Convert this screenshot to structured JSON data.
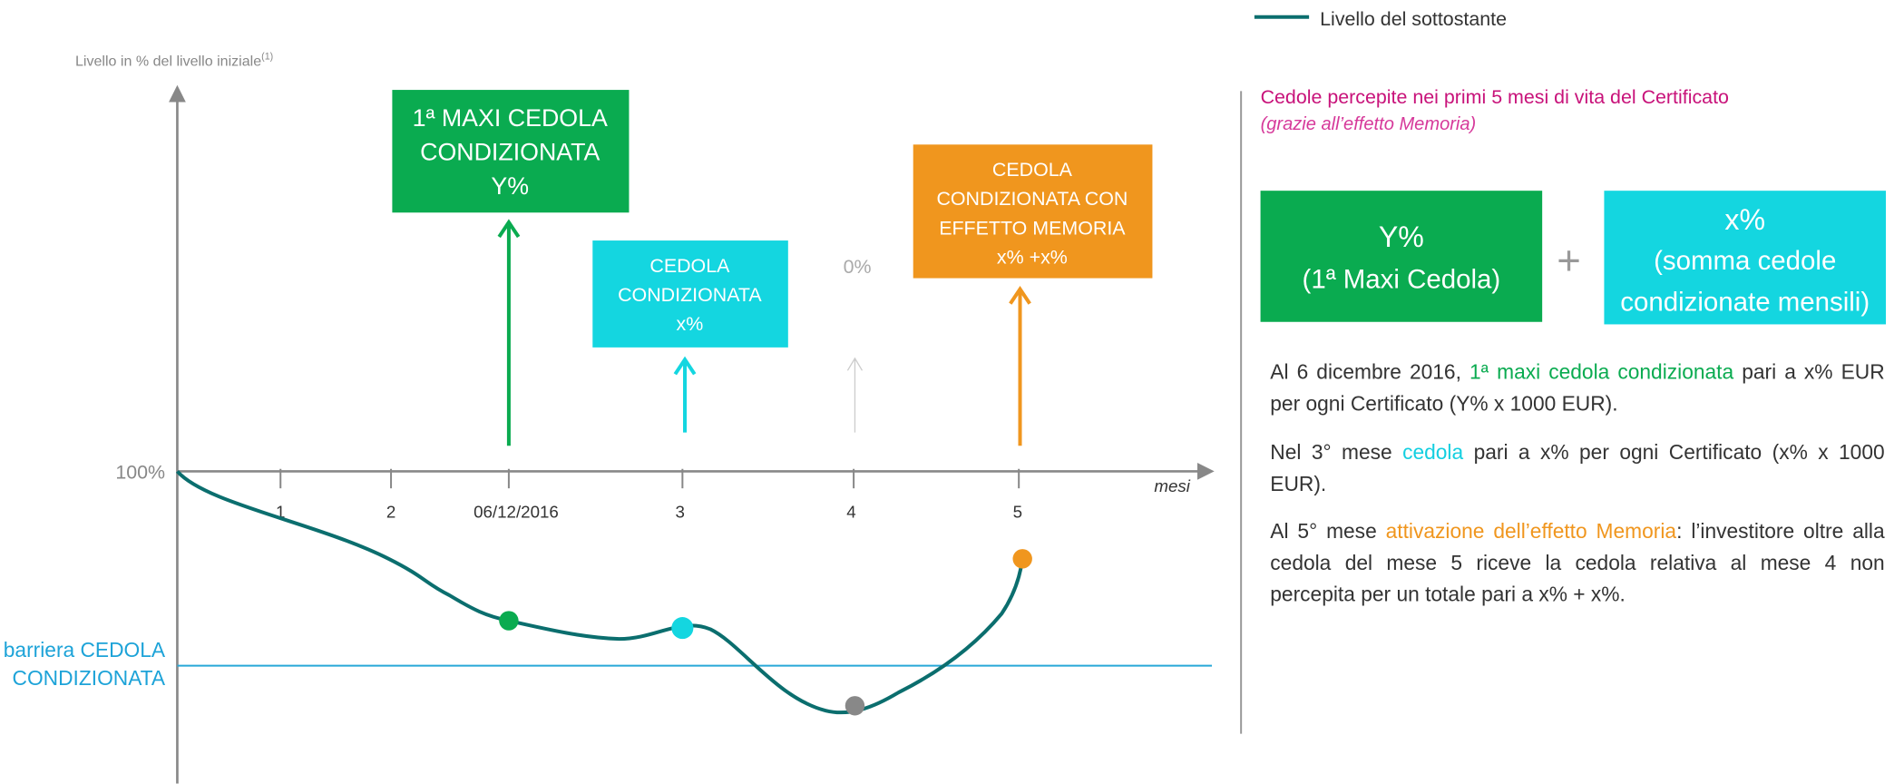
{
  "legend": {
    "label": "Livello del sottostante"
  },
  "chart": {
    "y_axis_label": "Livello in % del livello iniziale",
    "y_axis_note": "(1)",
    "y_reference": "100%",
    "x_labels": [
      "1",
      "2",
      "06/12/2016",
      "3",
      "4",
      "5"
    ],
    "x_axis_label": "mesi",
    "barrier": [
      "barriera CEDOLA",
      "CONDIZIONATA"
    ],
    "callouts": [
      {
        "lines": [
          "1ª MAXI CEDOLA",
          "CONDIZIONATA",
          "Y%"
        ]
      },
      {
        "lines": [
          "CEDOLA",
          "CONDIZIONATA",
          "x%"
        ]
      },
      {
        "lines": [
          "0%"
        ]
      },
      {
        "lines": [
          "CEDOLA",
          "CONDIZIONATA CON",
          "EFFETTO MEMORIA",
          "x% +x%"
        ]
      }
    ]
  },
  "summary": {
    "title": "Cedole percepite nei primi 5 mesi di vita del Certificato",
    "subtitle": "(grazie all’effetto Memoria)",
    "boxes": [
      {
        "lines": [
          "Y%",
          "(1ª Maxi Cedola)"
        ]
      },
      {
        "lines": [
          "x%",
          "(somma cedole",
          "condizionate mensili)"
        ]
      }
    ],
    "operator": "+",
    "paragraphs": [
      {
        "segments": [
          "Al 6 dicembre 2016, ",
          "1ª maxi cedola condizionata",
          " pari a x% EUR per ogni Certificato (Y% x 1000 EUR)."
        ]
      },
      {
        "segments": [
          "Nel 3° mese ",
          "cedola",
          " pari a x% per ogni Certificato (x% x 1000 EUR)."
        ]
      },
      {
        "segments": [
          "Al 5° mese ",
          "attivazione dell’effetto Memoria",
          ": l’investitore oltre alla cedola del mese 5 riceve la cedola relativa al mese 4 non percepita per un totale pari a x% + x%."
        ]
      }
    ]
  }
}
